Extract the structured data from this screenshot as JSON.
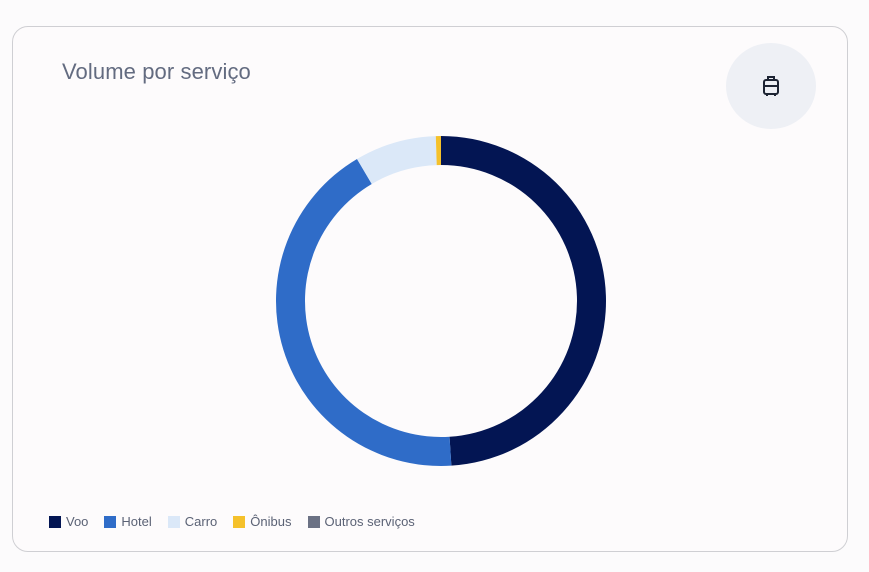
{
  "card": {
    "title": "Volume por serviço",
    "icon": "luggage-icon"
  },
  "chart_data": {
    "type": "donut",
    "title": "Volume por serviço",
    "series": [
      {
        "name": "Voo",
        "value": 49,
        "color": "#031553"
      },
      {
        "name": "Hotel",
        "value": 42.5,
        "color": "#2f6cc8"
      },
      {
        "name": "Carro",
        "value": 8,
        "color": "#dbe8f8"
      },
      {
        "name": "Ônibus",
        "value": 0.5,
        "color": "#f5c12b"
      },
      {
        "name": "Outros serviços",
        "value": 0,
        "color": "#6b7184"
      }
    ],
    "legend_position": "bottom-left"
  }
}
